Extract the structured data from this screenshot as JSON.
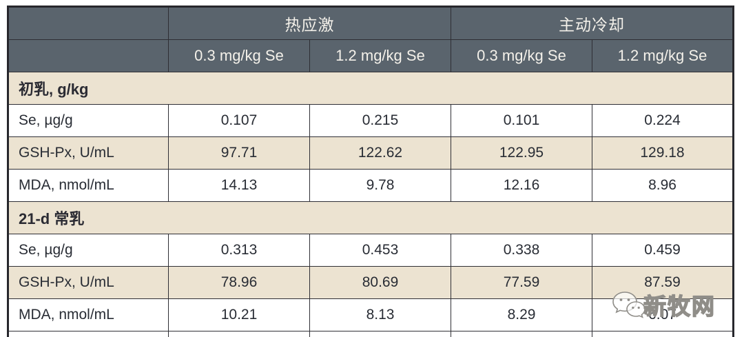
{
  "chart_data": {
    "type": "table",
    "title": "",
    "column_groups": [
      {
        "label": "热应激"
      },
      {
        "label": "主动冷却"
      }
    ],
    "sub_headers": [
      "0.3 mg/kg Se",
      "1.2 mg/kg Se",
      "0.3 mg/kg Se",
      "1.2 mg/kg Se"
    ],
    "sections": [
      {
        "title": "初乳, g/kg",
        "rows": [
          {
            "label": "Se, µg/g",
            "values": [
              "0.107",
              "0.215",
              "0.101",
              "0.224"
            ]
          },
          {
            "label": "GSH-Px, U/mL",
            "values": [
              "97.71",
              "122.62",
              "122.95",
              "129.18"
            ]
          },
          {
            "label": "MDA, nmol/mL",
            "values": [
              "14.13",
              "9.78",
              "12.16",
              "8.96"
            ]
          }
        ]
      },
      {
        "title": "21-d 常乳",
        "rows": [
          {
            "label": "Se, µg/g",
            "values": [
              "0.313",
              "0.453",
              "0.338",
              "0.459"
            ]
          },
          {
            "label": "GSH-Px, U/mL",
            "values": [
              "78.96",
              "80.69",
              "77.59",
              "87.59"
            ]
          },
          {
            "label": "MDA, nmol/mL",
            "values": [
              "10.21",
              "8.13",
              "8.29",
              "6.07"
            ]
          }
        ]
      }
    ],
    "layout": {
      "row_band_colors": {
        "header": "#5a646d",
        "section": "#ece3d1",
        "alt_row": "#ece3d1",
        "row": "#ffffff"
      },
      "border_color": "#2e2e34"
    }
  },
  "watermark": {
    "text": "新牧网",
    "icon": "wechat-icon"
  }
}
